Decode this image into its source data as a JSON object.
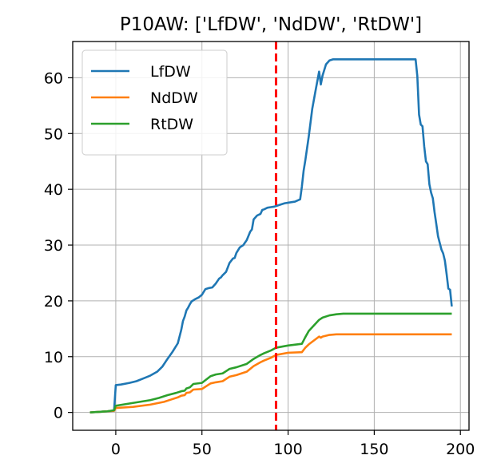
{
  "chart_data": {
    "type": "line",
    "title": "P10AW: ['LfDW', 'NdDW', 'RtDW']",
    "xlabel": "",
    "ylabel": "",
    "xlim": [
      -25,
      205
    ],
    "ylim": [
      -3.2,
      66.5
    ],
    "xticks": [
      0,
      50,
      100,
      150,
      200
    ],
    "yticks": [
      0,
      10,
      20,
      30,
      40,
      50,
      60
    ],
    "grid": true,
    "legend_position": "top-left",
    "vertical_marker": {
      "x": 93,
      "color": "#ff0000",
      "style": "dashed"
    },
    "series": [
      {
        "name": "LfDW",
        "color": "#1f77b4",
        "x": [
          -15,
          -10,
          -5,
          -1,
          0,
          3,
          8,
          12,
          16,
          20,
          24,
          27,
          30,
          33,
          36,
          38,
          39,
          40,
          41,
          42,
          43,
          44,
          46,
          48,
          50,
          52,
          53,
          54,
          56,
          58,
          60,
          61,
          62,
          64,
          66,
          68,
          69,
          70,
          72,
          74,
          76,
          78,
          79,
          80,
          82,
          84,
          85,
          86,
          88,
          90,
          92,
          93,
          96,
          98,
          100,
          104,
          107,
          108,
          109,
          110,
          112,
          114,
          116,
          118,
          119,
          120,
          122,
          124,
          126,
          128,
          130,
          140,
          150,
          160,
          170,
          174,
          175,
          176,
          177,
          178,
          179,
          180,
          181,
          182,
          183,
          184,
          185,
          186,
          187,
          188,
          189,
          190,
          191,
          192,
          193,
          194,
          195
        ],
        "values": [
          0,
          0.1,
          0.2,
          0.3,
          4.9,
          5.0,
          5.3,
          5.6,
          6.1,
          6.6,
          7.3,
          8.2,
          9.6,
          10.9,
          12.4,
          14.8,
          16.4,
          17.2,
          18.3,
          18.8,
          19.4,
          19.9,
          20.3,
          20.6,
          21.1,
          22.1,
          22.2,
          22.3,
          22.4,
          23.1,
          24.0,
          24.2,
          24.6,
          25.2,
          26.8,
          27.6,
          27.7,
          28.6,
          29.6,
          30.0,
          30.9,
          32.4,
          32.8,
          34.6,
          35.3,
          35.6,
          36.3,
          36.4,
          36.7,
          36.8,
          36.9,
          37.0,
          37.3,
          37.5,
          37.6,
          37.8,
          38.2,
          40.5,
          43.3,
          45.2,
          49.5,
          54.4,
          57.8,
          61.1,
          58.8,
          60.4,
          62.4,
          63.1,
          63.3,
          63.3,
          63.3,
          63.3,
          63.3,
          63.3,
          63.3,
          63.3,
          60.3,
          53.4,
          51.6,
          51.3,
          47.7,
          45.0,
          44.5,
          40.9,
          39.4,
          38.4,
          35.9,
          33.8,
          31.6,
          30.4,
          29.2,
          28.5,
          27.2,
          24.8,
          22.2,
          22.0,
          19.0
        ]
      },
      {
        "name": "NdDW",
        "color": "#ff7f0e",
        "x": [
          -15,
          -5,
          -1,
          0,
          10,
          20,
          28,
          32,
          36,
          38,
          40,
          41,
          43,
          45,
          50,
          55,
          58,
          62,
          65,
          66,
          70,
          74,
          76,
          80,
          84,
          86,
          90,
          93,
          100,
          108,
          110,
          112,
          115,
          118,
          119,
          120,
          124,
          128,
          132,
          136,
          140,
          160,
          180,
          195
        ],
        "values": [
          0,
          0.2,
          0.3,
          0.8,
          1.0,
          1.4,
          1.9,
          2.3,
          2.7,
          3.0,
          3.1,
          3.5,
          3.6,
          4.1,
          4.2,
          5.2,
          5.4,
          5.6,
          6.2,
          6.4,
          6.7,
          7.1,
          7.3,
          8.3,
          9.0,
          9.3,
          9.8,
          10.3,
          10.7,
          10.8,
          11.6,
          12.2,
          12.9,
          13.6,
          13.4,
          13.6,
          13.9,
          14.0,
          14.0,
          14.0,
          14.0,
          14.0,
          14.0,
          14.0
        ]
      },
      {
        "name": "RtDW",
        "color": "#2ca02c",
        "x": [
          -15,
          -5,
          -1,
          0,
          10,
          20,
          25,
          30,
          35,
          38,
          40,
          41,
          43,
          45,
          50,
          55,
          58,
          62,
          65,
          66,
          70,
          74,
          76,
          80,
          84,
          86,
          90,
          93,
          100,
          108,
          110,
          112,
          115,
          118,
          120,
          124,
          128,
          132,
          136,
          140,
          160,
          180,
          195
        ],
        "values": [
          0,
          0.2,
          0.4,
          1.2,
          1.7,
          2.2,
          2.6,
          3.1,
          3.5,
          3.8,
          3.9,
          4.3,
          4.5,
          5.1,
          5.3,
          6.5,
          6.8,
          7.0,
          7.6,
          7.8,
          8.1,
          8.5,
          8.7,
          9.6,
          10.3,
          10.6,
          11.1,
          11.6,
          12.0,
          12.3,
          13.5,
          14.6,
          15.6,
          16.6,
          17.0,
          17.4,
          17.6,
          17.7,
          17.7,
          17.7,
          17.7,
          17.7,
          17.7
        ]
      }
    ]
  }
}
